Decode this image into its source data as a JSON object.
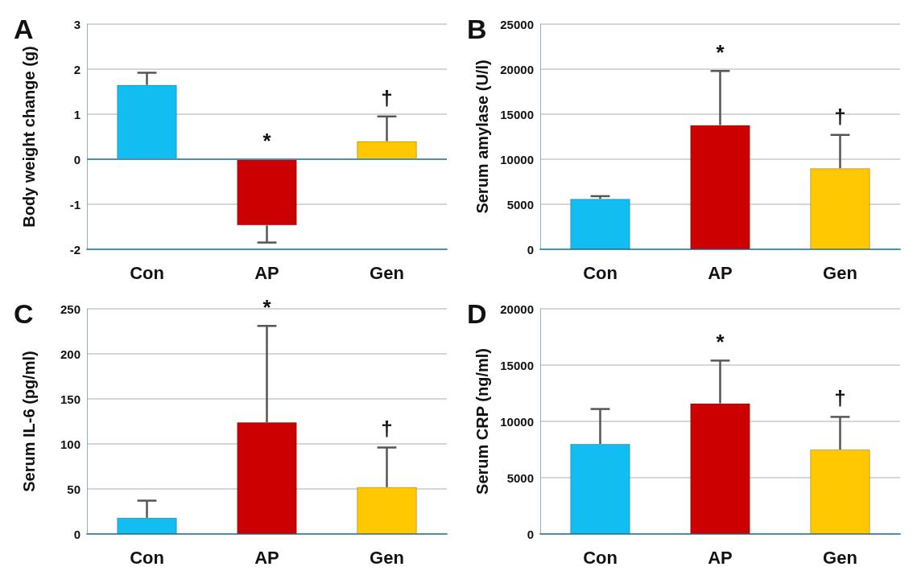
{
  "chart_data": [
    {
      "type": "bar",
      "title": "A",
      "ylabel": "Body weight change (g)",
      "categories": [
        "Con",
        "AP",
        "Gen"
      ],
      "values": [
        1.65,
        -1.47,
        0.4
      ],
      "colors": [
        "#12bdf2",
        "#cc0000",
        "#ffc800"
      ],
      "errors": [
        [
          1.65,
          1.92
        ],
        [
          -1.85,
          -1.47
        ],
        [
          0.4,
          0.95
        ]
      ],
      "ylim": [
        -2,
        3
      ],
      "yticks": [
        -2,
        -1,
        0,
        1,
        2,
        3
      ],
      "grid": "y",
      "ref_lines": [
        {
          "axis": "y",
          "value": 0,
          "color": "#4a90b0"
        }
      ],
      "annotations": [
        {
          "text": "*",
          "x": "AP",
          "y": 0
        },
        {
          "text": "†",
          "x": "Gen",
          "y": 0.95
        }
      ]
    },
    {
      "type": "bar",
      "title": "B",
      "ylabel": "Serum amylase (U/l)",
      "categories": [
        "Con",
        "AP",
        "Gen"
      ],
      "values": [
        5600,
        13800,
        9000
      ],
      "colors": [
        "#12bdf2",
        "#cc0000",
        "#ffc800"
      ],
      "errors": [
        [
          5600,
          5900
        ],
        [
          13800,
          19800
        ],
        [
          9000,
          12700
        ]
      ],
      "ylim": [
        0,
        25000
      ],
      "yticks": [
        0,
        5000,
        10000,
        15000,
        20000,
        25000
      ],
      "grid": "y",
      "annotations": [
        {
          "text": "*",
          "x": "AP",
          "y": 19800
        },
        {
          "text": "†",
          "x": "Gen",
          "y": 12700
        }
      ]
    },
    {
      "type": "bar",
      "title": "C",
      "ylabel": "Serum IL-6 (pg/ml)",
      "categories": [
        "Con",
        "AP",
        "Gen"
      ],
      "values": [
        18,
        124,
        52
      ],
      "colors": [
        "#12bdf2",
        "#cc0000",
        "#ffc800"
      ],
      "errors": [
        [
          18,
          37
        ],
        [
          124,
          231
        ],
        [
          52,
          96
        ]
      ],
      "ylim": [
        0,
        250
      ],
      "yticks": [
        0,
        50,
        100,
        150,
        200,
        250
      ],
      "grid": "y",
      "annotations": [
        {
          "text": "*",
          "x": "AP",
          "y": 231
        },
        {
          "text": "†",
          "x": "Gen",
          "y": 96
        }
      ]
    },
    {
      "type": "bar",
      "title": "D",
      "ylabel": "Serum CRP (ng/ml)",
      "categories": [
        "Con",
        "AP",
        "Gen"
      ],
      "values": [
        8000,
        11600,
        7500
      ],
      "colors": [
        "#12bdf2",
        "#cc0000",
        "#ffc800"
      ],
      "errors": [
        [
          8000,
          11100
        ],
        [
          11600,
          15400
        ],
        [
          7500,
          10400
        ]
      ],
      "ylim": [
        0,
        20000
      ],
      "yticks": [
        0,
        5000,
        10000,
        15000,
        20000
      ],
      "grid": "y",
      "annotations": [
        {
          "text": "*",
          "x": "AP",
          "y": 15400
        },
        {
          "text": "†",
          "x": "Gen",
          "y": 10400
        }
      ]
    }
  ]
}
